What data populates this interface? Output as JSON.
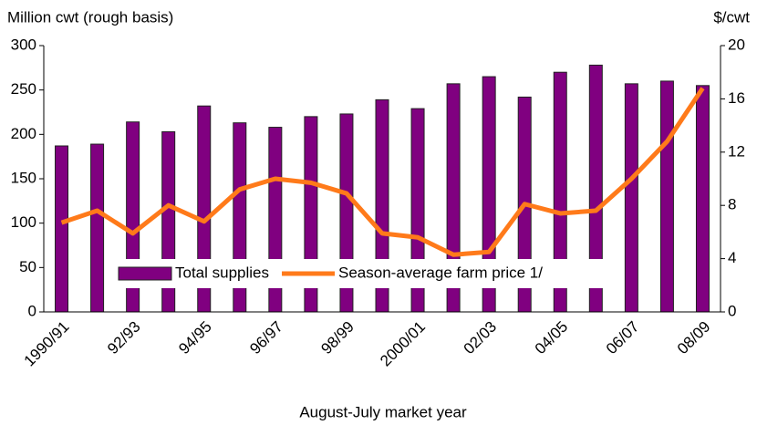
{
  "chart_data": {
    "type": "bar-line",
    "y_label": "Million cwt (rough basis)",
    "y2_label": "$/cwt",
    "x_label": "August-July market year",
    "categories": [
      "1990/91",
      null,
      "92/93",
      null,
      "94/95",
      null,
      "96/97",
      null,
      "98/99",
      null,
      "2000/01",
      null,
      "02/03",
      null,
      "04/05",
      null,
      "06/07",
      null,
      "08/09"
    ],
    "series": [
      {
        "name": "Total supplies",
        "type": "bar",
        "color": "#800080",
        "values": [
          187,
          189,
          214,
          203,
          232,
          213,
          208,
          220,
          223,
          239,
          229,
          257,
          265,
          242,
          270,
          278,
          257,
          260,
          255
        ]
      },
      {
        "name": "Season-average farm price 1/",
        "type": "line",
        "color": "#ff7a1a",
        "axis": "y2",
        "values": [
          6.7,
          7.6,
          5.9,
          8.0,
          6.8,
          9.2,
          10.0,
          9.7,
          8.9,
          5.9,
          5.6,
          4.3,
          4.5,
          8.1,
          7.4,
          7.6,
          10.0,
          12.8,
          16.8
        ]
      }
    ],
    "ylim": [
      0,
      300
    ],
    "yticks": [
      0,
      50,
      100,
      150,
      200,
      250,
      300
    ],
    "y2lim": [
      0,
      20
    ],
    "y2ticks": [
      0,
      4,
      8,
      12,
      16,
      20
    ]
  }
}
